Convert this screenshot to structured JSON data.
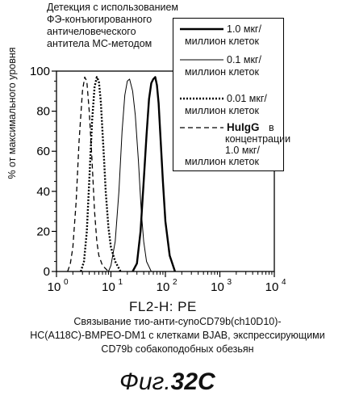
{
  "title_lines": [
    "Детекция с использованием",
    "ФЭ-конъюгированного",
    "античеловеческого",
    "антитела МС-методом"
  ],
  "chart_data": {
    "type": "line",
    "title": "Детекция с использованием ФЭ-конъюгированного античеловеческого антитела МС-методом",
    "xlabel": "FL2-H: PE",
    "ylabel": "% от максимального уровня",
    "xscale": "log",
    "xlim": [
      1,
      10000
    ],
    "ylim": [
      0,
      100
    ],
    "x_ticks": [
      1,
      10,
      100,
      1000,
      10000
    ],
    "x_tick_labels": [
      {
        "base": "10",
        "exp": "0"
      },
      {
        "base": "10",
        "exp": "1"
      },
      {
        "base": "10",
        "exp": "2"
      },
      {
        "base": "10",
        "exp": "3"
      },
      {
        "base": "10",
        "exp": "4"
      }
    ],
    "y_ticks": [
      0,
      20,
      40,
      60,
      80,
      100
    ],
    "legend_placement": "top-right",
    "series": [
      {
        "name": "1.0 мкг/ миллион клеток",
        "legend_lines": [
          "1.0 мкг/",
          "миллион клеток"
        ],
        "style": "solid-thick",
        "x": [
          25,
          30,
          35,
          40,
          45,
          50,
          55,
          60,
          65,
          70,
          75,
          80,
          90,
          100,
          120,
          150
        ],
        "y": [
          0,
          4,
          20,
          45,
          68,
          86,
          94,
          96,
          97,
          93,
          84,
          70,
          45,
          25,
          8,
          0
        ]
      },
      {
        "name": "0.1 мкг/ миллион клеток",
        "legend_lines": [
          "0.1 мкг/",
          "миллион клеток"
        ],
        "style": "solid-thin",
        "x": [
          9,
          10,
          12,
          14,
          16,
          18,
          20,
          22,
          25,
          28,
          32,
          36,
          40,
          45,
          55
        ],
        "y": [
          0,
          3,
          15,
          40,
          70,
          88,
          95,
          96,
          90,
          78,
          55,
          30,
          15,
          5,
          0
        ]
      },
      {
        "name": "0.01 мкг/ миллион клеток",
        "legend_lines": [
          "0.01 мкг/",
          "миллион клеток"
        ],
        "style": "dotted",
        "x": [
          2.8,
          3.2,
          3.6,
          4,
          4.5,
          5,
          5.5,
          6,
          6.5,
          7,
          7.5,
          8,
          9,
          10,
          12,
          15
        ],
        "y": [
          0,
          5,
          20,
          45,
          75,
          92,
          97,
          95,
          85,
          70,
          55,
          40,
          22,
          12,
          5,
          0
        ]
      },
      {
        "name": "HuIgG в концентрации 1.0 мкг/ миллион клеток",
        "legend_lines": [
          "HuIgG",
          "в",
          "концентрации",
          "1.0 мкг/",
          "миллион клеток"
        ],
        "style": "dashed",
        "x": [
          1.6,
          1.8,
          2,
          2.3,
          2.6,
          3,
          3.3,
          3.6,
          4,
          4.5,
          5,
          5.5,
          6,
          7,
          9
        ],
        "y": [
          0,
          4,
          12,
          35,
          65,
          90,
          97,
          95,
          80,
          55,
          30,
          15,
          8,
          3,
          0
        ]
      }
    ]
  },
  "caption_lines": [
    "Связывание тио-анти-cynoCD79b(ch10D10)-",
    "HC(A118C)-BMPEO-DM1 с клетками BJAB, экспрессирующими",
    "CD79b собакоподобных обезьян"
  ],
  "figure_label": {
    "prefix": "Фиг.",
    "number": "32C"
  }
}
